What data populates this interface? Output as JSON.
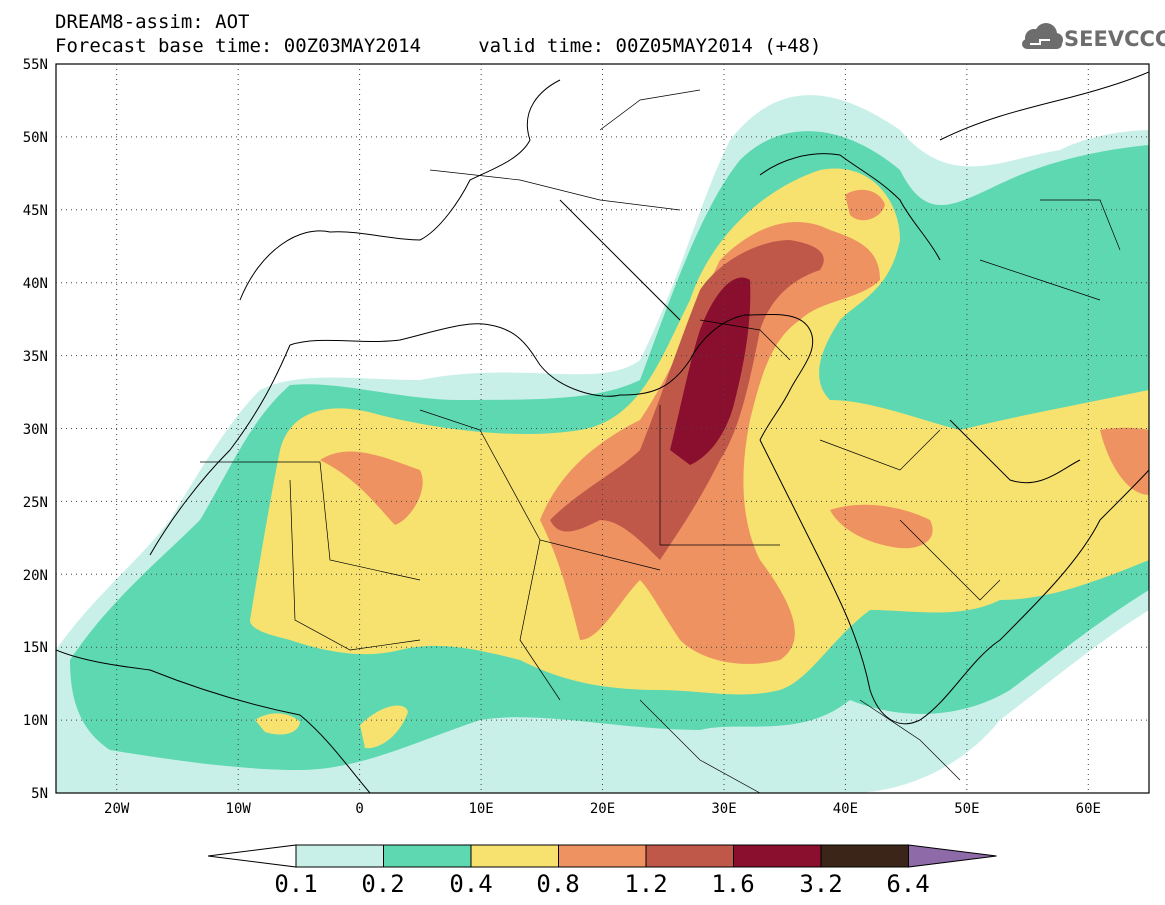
{
  "header": {
    "model_line": "DREAM8-assim: AOT",
    "time_line": "Forecast base time: 00Z03MAY2014     valid time: 00Z05MAY2014 (+48)",
    "logo_text": "SEEVCCC",
    "logo_icon": "cloud-icon"
  },
  "map": {
    "lon_range": [
      -25,
      65
    ],
    "lat_range": [
      5,
      55
    ],
    "lat_labels": [
      "55N",
      "50N",
      "45N",
      "40N",
      "35N",
      "30N",
      "25N",
      "20N",
      "15N",
      "10N",
      "5N"
    ],
    "lon_labels": [
      "20W",
      "10W",
      "0",
      "10E",
      "20E",
      "30E",
      "40E",
      "50E",
      "60E"
    ],
    "gridlines": "dotted"
  },
  "colorbar": {
    "labels": [
      "0.1",
      "0.2",
      "0.4",
      "0.8",
      "1.2",
      "1.6",
      "3.2",
      "6.4"
    ],
    "colors": [
      "#ffffff",
      "#c8f0e8",
      "#5ed8b0",
      "#f7e270",
      "#ee9262",
      "#c0584a",
      "#8a0e2d",
      "#3b2418",
      "#8f6aa8"
    ]
  }
}
